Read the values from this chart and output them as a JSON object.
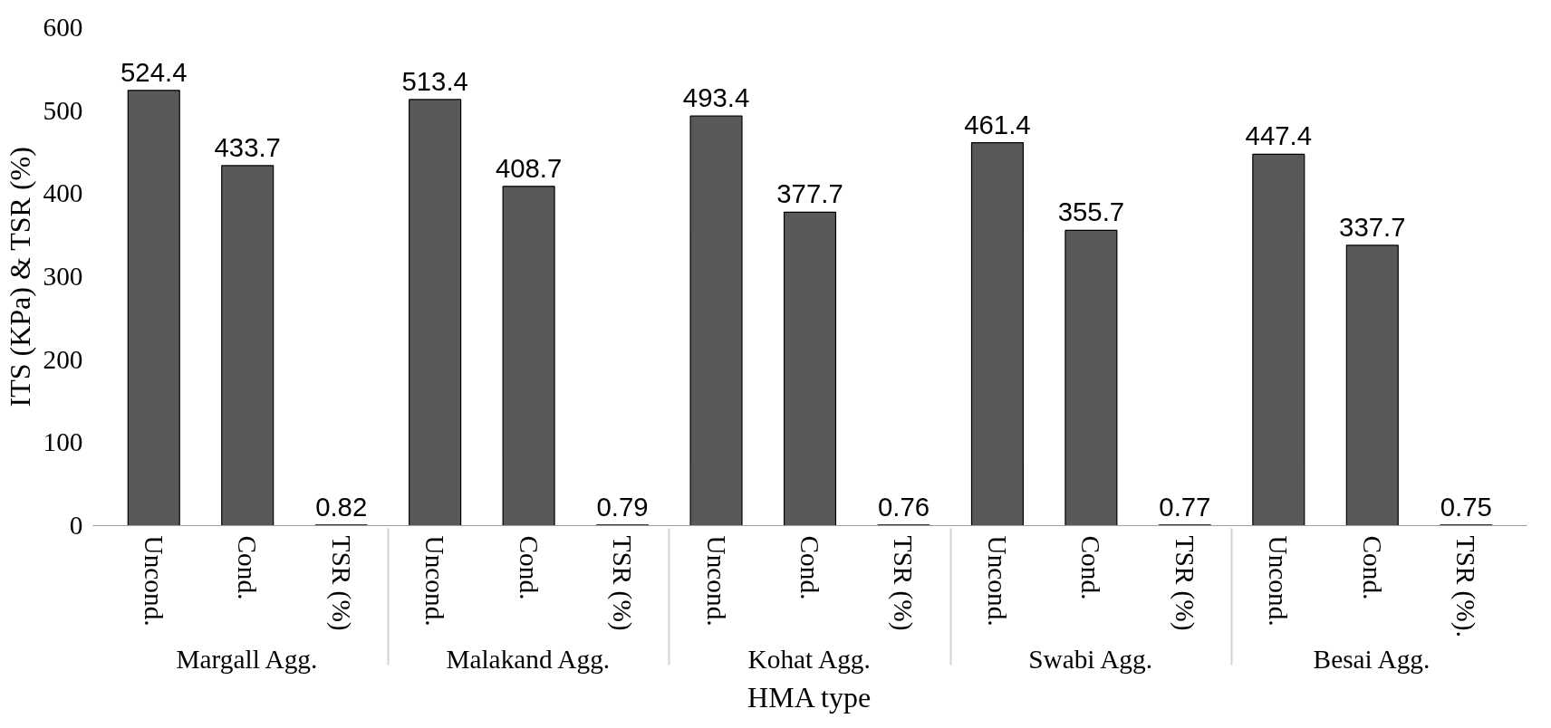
{
  "chart_data": {
    "type": "bar",
    "xlabel": "HMA type",
    "ylabel": "ITS (KPa) & TSR (%)",
    "categories": [
      "Uncond.",
      "Cond.",
      "TSR (%)",
      "Uncond.",
      "Cond.",
      "TSR (%)",
      "Uncond.",
      "Cond.",
      "TSR (%)",
      "Uncond.",
      "Cond.",
      "TSR (%)",
      "Uncond.",
      "Cond.",
      "TSR (%)."
    ],
    "annotations": [
      "Margall Agg.",
      "Malakand Agg.",
      "Kohat Agg.",
      "Swabi Agg.",
      "Besai Agg."
    ],
    "values": [
      524.4,
      433.7,
      0.82,
      513.4,
      408.7,
      0.79,
      493.4,
      377.7,
      0.76,
      461.4,
      355.7,
      0.77,
      447.4,
      337.7,
      0.75
    ],
    "color": "#595959",
    "data_labels": true,
    "ylim": [
      0,
      600
    ],
    "yticks": [
      0,
      100,
      200,
      300,
      400,
      500,
      600
    ],
    "grid": false
  }
}
